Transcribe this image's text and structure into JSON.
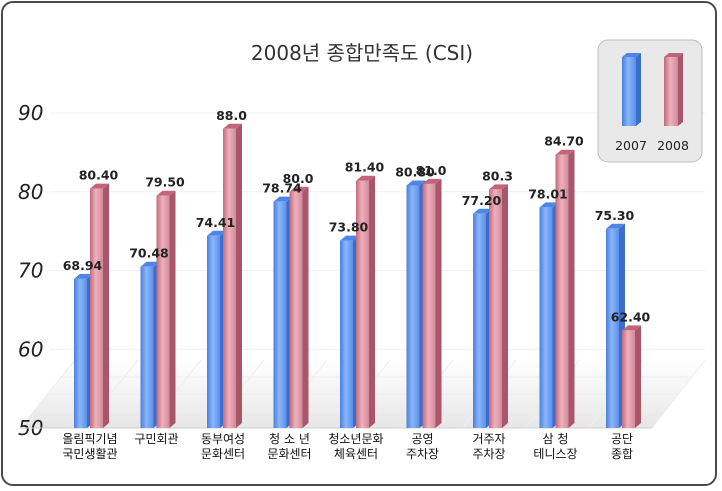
{
  "chart_data": {
    "type": "bar",
    "title": "2008년 종합만족도 (CSI)",
    "ylim": [
      50,
      90
    ],
    "yticks": [
      50,
      60,
      70,
      80,
      90
    ],
    "categories": [
      [
        "올림픽기념",
        "국민생활관"
      ],
      [
        "구민회관"
      ],
      [
        "동부여성",
        "문화센터"
      ],
      [
        "청 소 년",
        "문화센터"
      ],
      [
        "청소년문화",
        "체육센터"
      ],
      [
        "공영",
        "주차장"
      ],
      [
        "거주자",
        "주차장"
      ],
      [
        "삼        청",
        "테니스장"
      ],
      [
        "공단",
        "종합"
      ]
    ],
    "series": [
      {
        "name": "2007",
        "color": "#5f95ee",
        "values": [
          68.94,
          70.48,
          74.41,
          78.74,
          73.8,
          80.8,
          77.2,
          78.01,
          75.3
        ],
        "labels": [
          "68.94",
          "70.48",
          "74.41",
          "78.74",
          "73.80",
          "80.80",
          "77.20",
          "78.01",
          "75.30"
        ]
      },
      {
        "name": "2008",
        "color": "#d98c9c",
        "values": [
          80.4,
          79.5,
          88.0,
          80.0,
          81.4,
          81.0,
          80.3,
          84.7,
          62.4
        ],
        "labels": [
          "80.40",
          "79.50",
          "88.0",
          "80.0",
          "81.40",
          "81.0",
          "80.3",
          "84.70",
          "62.40"
        ]
      }
    ],
    "legend": "top-right"
  }
}
